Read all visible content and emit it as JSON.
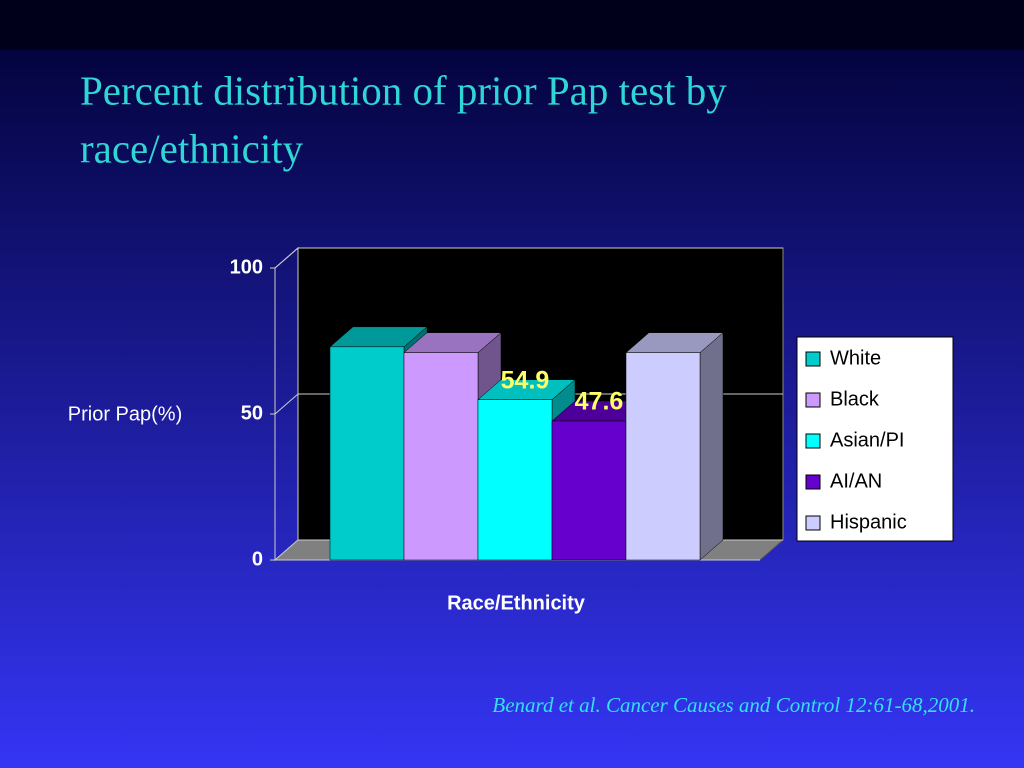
{
  "chart_data": {
    "type": "bar3d",
    "title_lines": [
      "Percent distribution of prior Pap test by",
      "race/ethnicity"
    ],
    "y_label": "Prior Pap(%)",
    "x_label": "Race/Ethnicity",
    "ylim": [
      0,
      100
    ],
    "yticks": [
      0,
      50,
      100
    ],
    "grid": true,
    "series": [
      {
        "name": "White",
        "color": "#00cccc",
        "values": [
          73
        ]
      },
      {
        "name": "Black",
        "color": "#cc99ff",
        "values": [
          71
        ]
      },
      {
        "name": "Asian/PI",
        "color": "#00ffff",
        "values": [
          54.9
        ],
        "show_label": true
      },
      {
        "name": "AI/AN",
        "color": "#6600cc",
        "values": [
          47.6
        ],
        "show_label": true
      },
      {
        "name": "Hispanic",
        "color": "#ccccff",
        "values": [
          71
        ]
      }
    ],
    "legend": "right",
    "citation": "Benard et al. Cancer Causes and Control 12:61-68,2001."
  }
}
